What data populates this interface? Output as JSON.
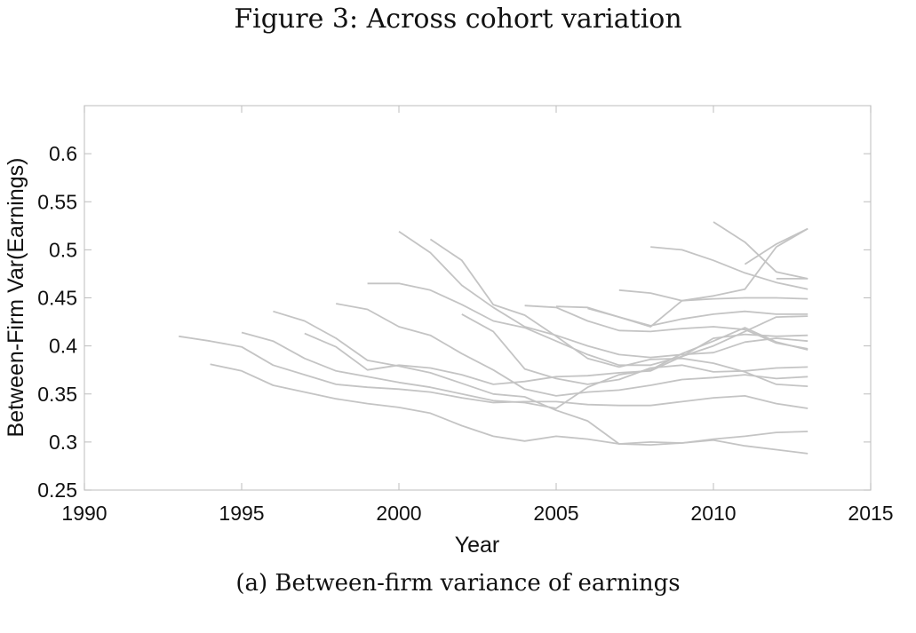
{
  "figure": {
    "title": "Figure 3: Across cohort variation",
    "caption": "(a) Between-firm variance of earnings"
  },
  "chart_data": {
    "type": "line",
    "title": "",
    "xlabel": "Year",
    "ylabel": "Between-Firm Var(Earnings)",
    "xlim": [
      1990,
      2015
    ],
    "ylim": [
      0.25,
      0.65
    ],
    "xticks": [
      1990,
      1995,
      2000,
      2005,
      2010,
      2015
    ],
    "yticks": [
      0.25,
      0.3,
      0.35,
      0.4,
      0.45,
      0.5,
      0.55,
      0.6
    ],
    "ytick_labels": [
      "0.25",
      "0.3",
      "0.35",
      "0.4",
      "0.45",
      "0.5",
      "0.55",
      "0.6"
    ],
    "grid": false,
    "line_color": "#c4c4c4",
    "series": [
      {
        "x": [
          1993,
          1994,
          1995,
          1996,
          1997,
          1998,
          1999,
          2000,
          2001,
          2002,
          2003,
          2004,
          2005,
          2006,
          2007,
          2008,
          2009,
          2010,
          2011,
          2012,
          2013
        ],
        "values": [
          0.41,
          0.405,
          0.399,
          0.38,
          0.37,
          0.36,
          0.357,
          0.355,
          0.352,
          0.346,
          0.341,
          0.342,
          0.342,
          0.339,
          0.338,
          0.338,
          0.342,
          0.346,
          0.348,
          0.34,
          0.335
        ]
      },
      {
        "x": [
          1994,
          1995,
          1996,
          1997,
          1998,
          1999,
          2000,
          2001,
          2002,
          2003,
          2004,
          2005,
          2006,
          2007,
          2008,
          2009,
          2010,
          2011,
          2012,
          2013
        ],
        "values": [
          0.381,
          0.374,
          0.359,
          0.352,
          0.345,
          0.34,
          0.336,
          0.33,
          0.317,
          0.306,
          0.301,
          0.306,
          0.303,
          0.298,
          0.3,
          0.299,
          0.302,
          0.296,
          0.292,
          0.288
        ]
      },
      {
        "x": [
          1995,
          1996,
          1997,
          1998,
          1999,
          2000,
          2001,
          2002,
          2003,
          2004,
          2005,
          2006,
          2007,
          2008,
          2009,
          2010,
          2011,
          2012,
          2013
        ],
        "values": [
          0.414,
          0.405,
          0.387,
          0.374,
          0.368,
          0.362,
          0.357,
          0.35,
          0.343,
          0.341,
          0.335,
          0.357,
          0.37,
          0.375,
          0.392,
          0.405,
          0.419,
          0.404,
          0.396
        ]
      },
      {
        "x": [
          1996,
          1997,
          1998,
          1999,
          2000,
          2001,
          2002,
          2003,
          2004,
          2005,
          2006,
          2007,
          2008,
          2009,
          2010,
          2011,
          2012,
          2013
        ],
        "values": [
          0.436,
          0.426,
          0.408,
          0.385,
          0.379,
          0.372,
          0.361,
          0.35,
          0.347,
          0.333,
          0.322,
          0.298,
          0.297,
          0.299,
          0.303,
          0.306,
          0.31,
          0.311
        ]
      },
      {
        "x": [
          1997,
          1998,
          1999,
          2000,
          2001,
          2002,
          2003,
          2004,
          2005,
          2006,
          2007,
          2008,
          2009,
          2010,
          2011,
          2012,
          2013
        ],
        "values": [
          0.413,
          0.399,
          0.375,
          0.38,
          0.377,
          0.37,
          0.36,
          0.363,
          0.368,
          0.369,
          0.372,
          0.374,
          0.389,
          0.408,
          0.412,
          0.41,
          0.411
        ]
      },
      {
        "x": [
          1998,
          1999,
          2000,
          2001,
          2002,
          2003,
          2004,
          2005,
          2006,
          2007,
          2008,
          2009,
          2010,
          2011,
          2012,
          2013
        ],
        "values": [
          0.444,
          0.438,
          0.42,
          0.411,
          0.392,
          0.375,
          0.355,
          0.348,
          0.352,
          0.354,
          0.359,
          0.365,
          0.367,
          0.37,
          0.366,
          0.368
        ]
      },
      {
        "x": [
          1999,
          2000,
          2001,
          2002,
          2003,
          2004,
          2005,
          2006,
          2007,
          2008,
          2009,
          2010,
          2011,
          2012,
          2013
        ],
        "values": [
          0.465,
          0.465,
          0.458,
          0.443,
          0.426,
          0.419,
          0.405,
          0.391,
          0.38,
          0.38,
          0.389,
          0.4,
          0.415,
          0.43,
          0.431
        ]
      },
      {
        "x": [
          2000,
          2001,
          2002,
          2003,
          2004,
          2005,
          2006,
          2007,
          2008,
          2009,
          2010,
          2011,
          2012,
          2013
        ],
        "values": [
          0.519,
          0.497,
          0.463,
          0.44,
          0.42,
          0.411,
          0.4,
          0.391,
          0.388,
          0.391,
          0.393,
          0.404,
          0.408,
          0.405
        ]
      },
      {
        "x": [
          2001,
          2002,
          2003,
          2004,
          2005,
          2006,
          2007,
          2008,
          2009,
          2010,
          2011,
          2012,
          2013
        ],
        "values": [
          0.511,
          0.489,
          0.443,
          0.432,
          0.41,
          0.387,
          0.378,
          0.386,
          0.387,
          0.382,
          0.373,
          0.36,
          0.358
        ]
      },
      {
        "x": [
          2002,
          2003,
          2004,
          2005,
          2006,
          2007,
          2008,
          2009,
          2010,
          2011,
          2012,
          2013
        ],
        "values": [
          0.433,
          0.415,
          0.376,
          0.366,
          0.36,
          0.365,
          0.377,
          0.38,
          0.373,
          0.374,
          0.377,
          0.378
        ]
      },
      {
        "x": [
          2004,
          2005,
          2006,
          2007,
          2008,
          2009,
          2010,
          2011,
          2012,
          2013
        ],
        "values": [
          0.442,
          0.44,
          0.426,
          0.416,
          0.415,
          0.418,
          0.42,
          0.417,
          0.403,
          0.397
        ]
      },
      {
        "x": [
          2005,
          2006,
          2007,
          2008,
          2009,
          2010,
          2011,
          2012,
          2013
        ],
        "values": [
          0.441,
          0.44,
          0.43,
          0.42,
          0.447,
          0.449,
          0.45,
          0.45,
          0.449
        ]
      },
      {
        "x": [
          2006,
          2007,
          2008,
          2009,
          2010,
          2011,
          2012,
          2013
        ],
        "values": [
          0.439,
          0.43,
          0.421,
          0.428,
          0.433,
          0.436,
          0.433,
          0.433
        ]
      },
      {
        "x": [
          2007,
          2008,
          2009,
          2010,
          2011,
          2012,
          2013
        ],
        "values": [
          0.458,
          0.455,
          0.447,
          0.452,
          0.459,
          0.503,
          0.522
        ]
      },
      {
        "x": [
          2008,
          2009,
          2010,
          2011,
          2012,
          2013
        ],
        "values": [
          0.503,
          0.5,
          0.489,
          0.476,
          0.466,
          0.459
        ]
      },
      {
        "x": [
          2010,
          2011,
          2012,
          2013
        ],
        "values": [
          0.529,
          0.508,
          0.477,
          0.47
        ]
      },
      {
        "x": [
          2011,
          2012,
          2013
        ],
        "values": [
          0.485,
          0.506,
          0.522
        ]
      },
      {
        "x": [
          2012,
          2013
        ],
        "values": [
          0.47,
          0.47
        ]
      }
    ]
  }
}
